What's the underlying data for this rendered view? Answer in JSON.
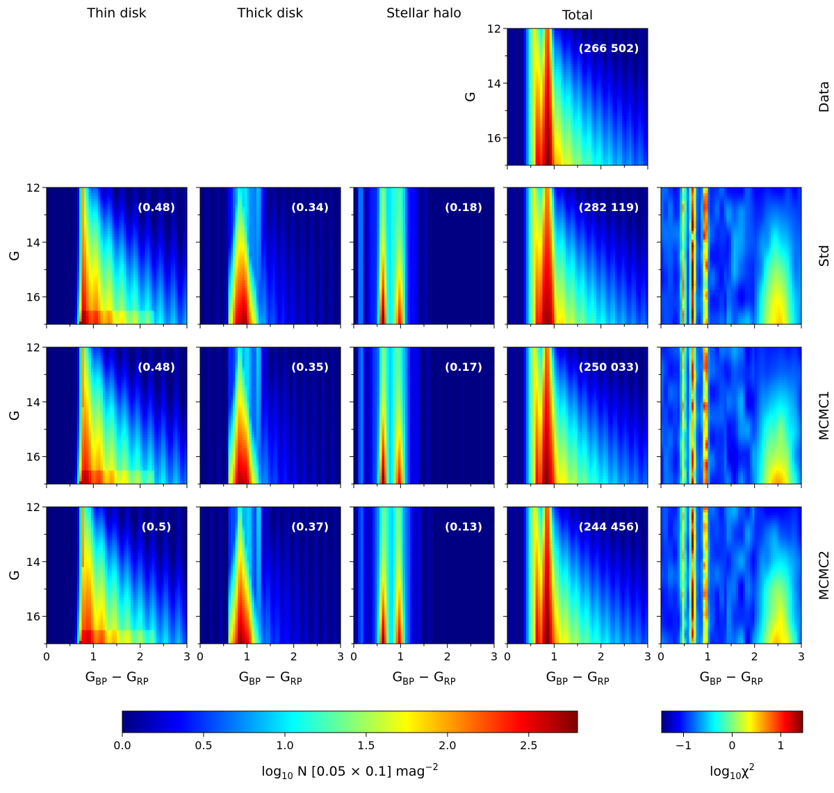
{
  "columns": [
    "Thin disk",
    "Thick disk",
    "Stellar halo",
    "Total"
  ],
  "rows": [
    "Data",
    "Std",
    "MCMC1",
    "MCMC2"
  ],
  "axis": {
    "ylabel": "G",
    "xlabel_main": "G",
    "xlabel_sub": "BP",
    "xlabel_minus": " − ",
    "xlabel_main2": "G",
    "xlabel_sub2": "RP",
    "xticks": [
      "0",
      "1",
      "2",
      "3"
    ],
    "yticks": [
      "12",
      "14",
      "16"
    ]
  },
  "chart_data": {
    "type": "heatmap",
    "xlim": [
      0,
      3
    ],
    "ylim": [
      17,
      12
    ],
    "xticks": [
      0,
      1,
      2,
      3
    ],
    "yticks": [
      12,
      14,
      16
    ],
    "panels": [
      {
        "row": "Data",
        "column": "Total",
        "kind": "total",
        "annotation": "(266 502)",
        "seed": 1
      },
      {
        "row": "Std",
        "column": "Thin disk",
        "kind": "thin",
        "annotation": "(0.48)",
        "seed": 2
      },
      {
        "row": "Std",
        "column": "Thick disk",
        "kind": "thick",
        "annotation": "(0.34)",
        "seed": 3
      },
      {
        "row": "Std",
        "column": "Stellar halo",
        "kind": "halo",
        "annotation": "(0.18)",
        "seed": 4
      },
      {
        "row": "Std",
        "column": "Total",
        "kind": "total",
        "annotation": "(282 119)",
        "seed": 5
      },
      {
        "row": "Std",
        "column": "chi2",
        "kind": "chi",
        "annotation": "",
        "seed": 6
      },
      {
        "row": "MCMC1",
        "column": "Thin disk",
        "kind": "thin",
        "annotation": "(0.48)",
        "seed": 7
      },
      {
        "row": "MCMC1",
        "column": "Thick disk",
        "kind": "thick",
        "annotation": "(0.35)",
        "seed": 8
      },
      {
        "row": "MCMC1",
        "column": "Stellar halo",
        "kind": "halo",
        "annotation": "(0.17)",
        "seed": 9
      },
      {
        "row": "MCMC1",
        "column": "Total",
        "kind": "total",
        "annotation": "(250 033)",
        "seed": 10
      },
      {
        "row": "MCMC1",
        "column": "chi2",
        "kind": "chi",
        "annotation": "",
        "seed": 11
      },
      {
        "row": "MCMC2",
        "column": "Thin disk",
        "kind": "thin",
        "annotation": "(0.5)",
        "seed": 12
      },
      {
        "row": "MCMC2",
        "column": "Thick disk",
        "kind": "thick",
        "annotation": "(0.37)",
        "seed": 13
      },
      {
        "row": "MCMC2",
        "column": "Stellar halo",
        "kind": "halo",
        "annotation": "(0.13)",
        "seed": 14
      },
      {
        "row": "MCMC2",
        "column": "Total",
        "kind": "total",
        "annotation": "(244 456)",
        "seed": 15
      },
      {
        "row": "MCMC2",
        "column": "chi2",
        "kind": "chi",
        "annotation": "",
        "seed": 16
      }
    ],
    "colorbars": [
      {
        "name": "counts",
        "label_prefix": "log",
        "label_sub": "10",
        "label_mid": " N [0.05 × 0.1] mag",
        "label_sup": "−2",
        "range": [
          0,
          2.8
        ],
        "ticks": [
          0.0,
          0.5,
          1.0,
          1.5,
          2.0,
          2.5
        ],
        "tick_labels": [
          "0.0",
          "0.5",
          "1.0",
          "1.5",
          "2.0",
          "2.5"
        ]
      },
      {
        "name": "chi2",
        "label_prefix": "log",
        "label_sub": "10",
        "label_mid": "χ",
        "label_sup": "2",
        "range": [
          -1.45,
          1.45
        ],
        "ticks": [
          -1,
          0,
          1
        ],
        "tick_labels": [
          "−1",
          "0",
          "1"
        ]
      }
    ]
  }
}
